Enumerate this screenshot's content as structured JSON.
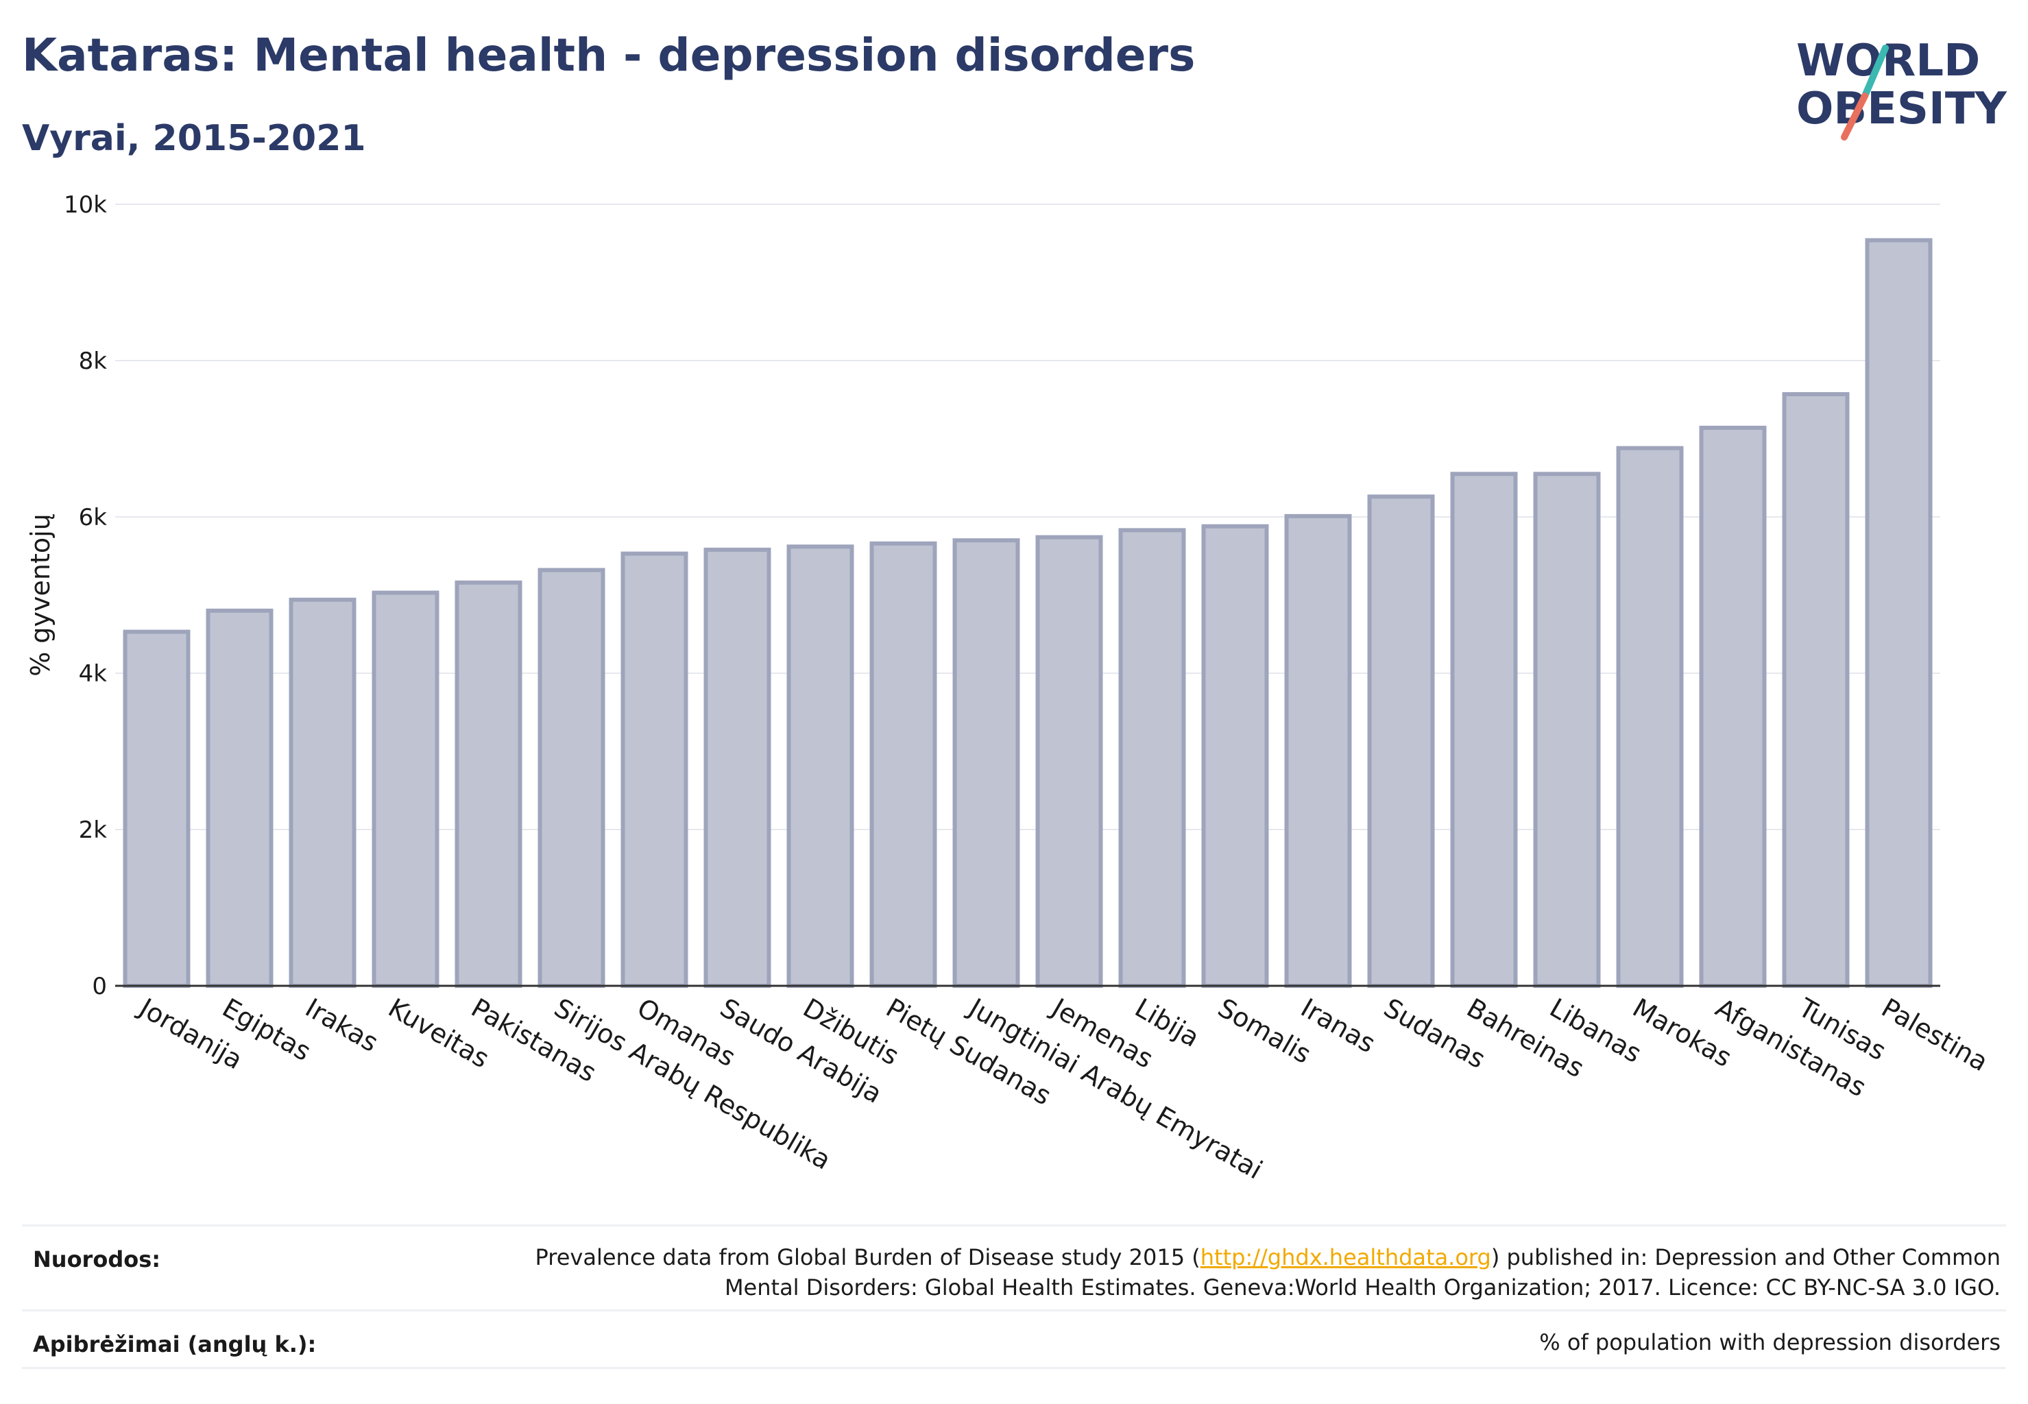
{
  "header": {
    "title": "Kataras: Mental health - depression disorders",
    "subtitle": "Vyrai, 2015-2021"
  },
  "logo": {
    "line1": "WORLD",
    "line2": "OBESITY",
    "colors": {
      "text": "#2b3a67",
      "slash_teal": "#3cb8b2",
      "slash_coral": "#e8705c"
    }
  },
  "chart_data": {
    "type": "bar",
    "ylabel": "% gyventojų",
    "xlabel": "",
    "ylim": [
      0,
      10000
    ],
    "yticks": [
      0,
      2000,
      4000,
      6000,
      8000,
      10000
    ],
    "ytick_labels": [
      "0",
      "2k",
      "4k",
      "6k",
      "8k",
      "10k"
    ],
    "grid": true,
    "categories": [
      "Jordanija",
      "Egiptas",
      "Irakas",
      "Kuveitas",
      "Pakistanas",
      "Sirijos Arabų Respublika",
      "Omanas",
      "Saudo Arabija",
      "Džibutis",
      "Pietų Sudanas",
      "Jungtiniai Arabų Emyratai",
      "Jemenas",
      "Libija",
      "Somalis",
      "Iranas",
      "Sudanas",
      "Bahreinas",
      "Libanas",
      "Marokas",
      "Afganistanas",
      "Tunisas",
      "Palestina"
    ],
    "values": [
      4530,
      4800,
      4940,
      5030,
      5160,
      5320,
      5530,
      5580,
      5620,
      5660,
      5700,
      5740,
      5830,
      5880,
      6010,
      6260,
      6550,
      6550,
      6880,
      7140,
      7570,
      9540
    ],
    "colors": {
      "bar_fill": "#c0c4d2",
      "bar_stroke": "#9ea4bb",
      "grid": "#e6e8ee",
      "axis": "#333333"
    }
  },
  "footer": {
    "sources_label": "Nuorodos:",
    "sources_text_before": "Prevalence data from Global Burden of Disease study 2015 (",
    "sources_link": "http://ghdx.healthdata.org",
    "sources_text_after": ") published in: Depression and Other Common",
    "sources_line2": "Mental Disorders: Global Health Estimates. Geneva:World Health Organization; 2017. Licence: CC BY-NC-SA 3.0 IGO.",
    "definitions_label": "Apibrėžimai (anglų k.):",
    "definitions_text": "% of population with depression disorders",
    "link_color": "#f2a900"
  }
}
